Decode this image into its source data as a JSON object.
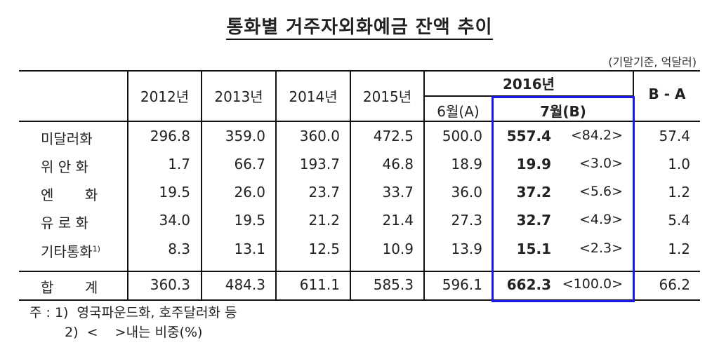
{
  "title": "통화별 거주자외화예금 잔액 추이",
  "unit_note": "(기말기준, 억달러)",
  "header": {
    "years": [
      "2012년",
      "2013년",
      "2014년",
      "2015년"
    ],
    "group_2016": "2016년",
    "june": "6월(A)",
    "july": "7월(B)",
    "diff": "B - A"
  },
  "rows": [
    {
      "label": "미달러화",
      "sup": "",
      "v2012": "296.8",
      "v2013": "359.0",
      "v2014": "360.0",
      "v2015": "472.5",
      "june": "500.0",
      "july": "557.4",
      "share": "<84.2>",
      "diff": "57.4"
    },
    {
      "label": "위 안 화",
      "sup": "",
      "v2012": "1.7",
      "v2013": "66.7",
      "v2014": "193.7",
      "v2015": "46.8",
      "june": "18.9",
      "july": "19.9",
      "share": "<3.0>",
      "diff": "1.0"
    },
    {
      "label": "엔       화",
      "sup": "",
      "v2012": "19.5",
      "v2013": "26.0",
      "v2014": "23.7",
      "v2015": "33.7",
      "june": "36.0",
      "july": "37.2",
      "share": "<5.6>",
      "diff": "1.2"
    },
    {
      "label": "유 로 화",
      "sup": "",
      "v2012": "34.0",
      "v2013": "19.5",
      "v2014": "21.2",
      "v2015": "21.4",
      "june": "27.3",
      "july": "32.7",
      "share": "<4.9>",
      "diff": "5.4"
    },
    {
      "label": "기타통화",
      "sup": "1)",
      "v2012": "8.3",
      "v2013": "13.1",
      "v2014": "12.5",
      "v2015": "10.9",
      "june": "13.9",
      "july": "15.1",
      "share": "<2.3>",
      "diff": "1.2"
    }
  ],
  "total": {
    "label": "합       계",
    "v2012": "360.3",
    "v2013": "484.3",
    "v2014": "611.1",
    "v2015": "585.3",
    "june": "596.1",
    "july": "662.3",
    "share": "<100.0>",
    "diff": "66.2"
  },
  "notes": {
    "line1": "주 : 1)  영국파운드화, 호주달러화 등",
    "line2": "2)  <    >내는 비중(%)"
  },
  "colors": {
    "highlight_box": "#1a1ae6",
    "rule": "#111111"
  }
}
